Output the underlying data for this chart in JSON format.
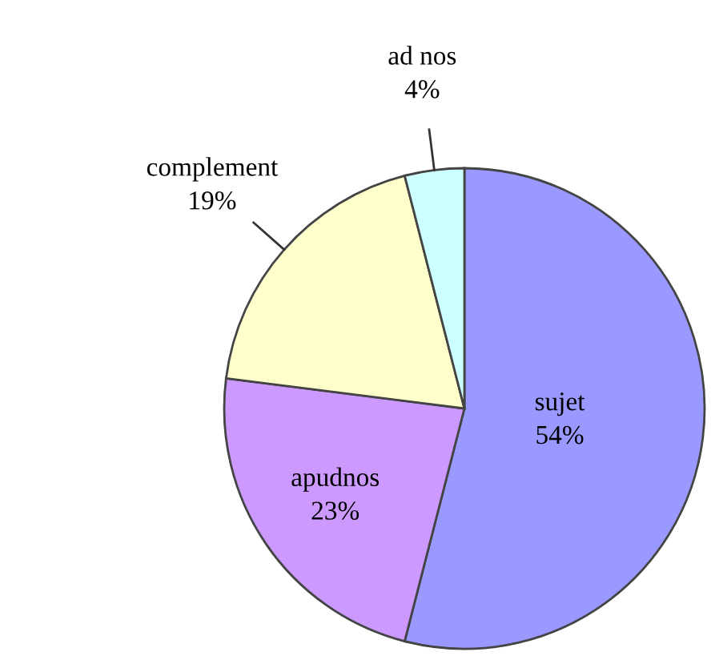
{
  "chart_data": {
    "type": "pie",
    "categories": [
      "sujet",
      "apudnos",
      "complement",
      "ad nos"
    ],
    "values": [
      54,
      23,
      19,
      4
    ],
    "colors": [
      "#9999ff",
      "#cc99ff",
      "#ffffcc",
      "#ccffff"
    ],
    "value_labels": [
      "54%",
      "23%",
      "19%",
      "4%"
    ],
    "legend": false
  }
}
